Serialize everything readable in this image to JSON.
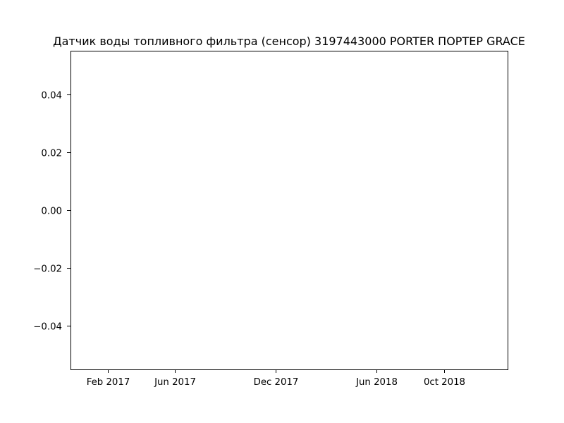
{
  "chart_data": {
    "type": "line",
    "title": "Датчик воды топливного фильтра (сенсор) 3197443000 PORTER ПОРТЕР GRACE",
    "xlabel": "",
    "ylabel": "",
    "x_axis": {
      "scale": "date",
      "range": [
        "2016-11-25",
        "2019-01-24"
      ],
      "ticks": [
        {
          "date": "2017-02-01",
          "label": "Feb 2017"
        },
        {
          "date": "2017-06-01",
          "label": "Jun 2017"
        },
        {
          "date": "2017-12-01",
          "label": "Dec 2017"
        },
        {
          "date": "2018-06-01",
          "label": "Jun 2018"
        },
        {
          "date": "2018-10-01",
          "label": "0ct 2018"
        }
      ]
    },
    "y_axis": {
      "range": [
        -0.055,
        0.055
      ],
      "ticks": [
        {
          "value": 0.04,
          "label": "0.04"
        },
        {
          "value": 0.02,
          "label": "0.02"
        },
        {
          "value": 0.0,
          "label": "0.00"
        },
        {
          "value": -0.02,
          "label": "−0.02"
        },
        {
          "value": -0.04,
          "label": "−0.04"
        }
      ]
    },
    "series": [],
    "grid": false,
    "legend": "none"
  }
}
